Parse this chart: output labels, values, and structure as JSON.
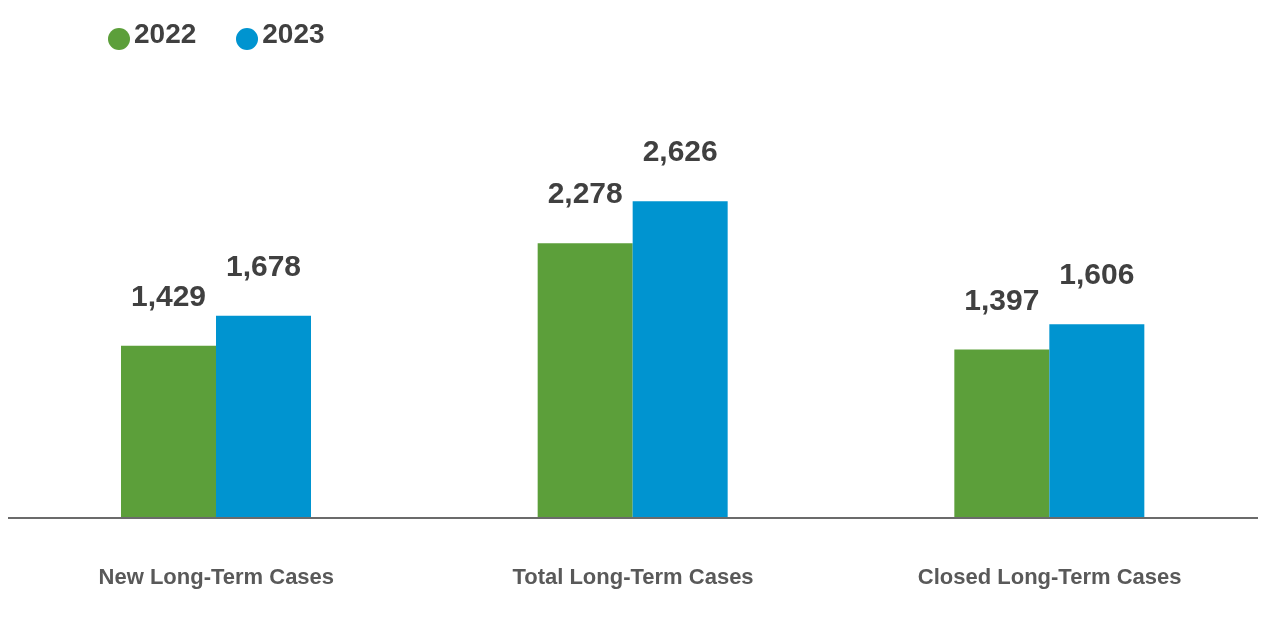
{
  "chart_data": {
    "type": "bar",
    "categories": [
      "New Long-Term Cases",
      "Total Long-Term Cases",
      "Closed Long-Term Cases"
    ],
    "series": [
      {
        "name": "2022",
        "color": "#5c9f3a",
        "values": [
          1429,
          2278,
          1397
        ],
        "value_labels": [
          "1,429",
          "2,278",
          "1,397"
        ]
      },
      {
        "name": "2023",
        "color": "#0094d0",
        "values": [
          1678,
          2626,
          1606
        ],
        "value_labels": [
          "1,678",
          "2,626",
          "1,606"
        ]
      }
    ],
    "legend": "top left",
    "grid": false
  }
}
